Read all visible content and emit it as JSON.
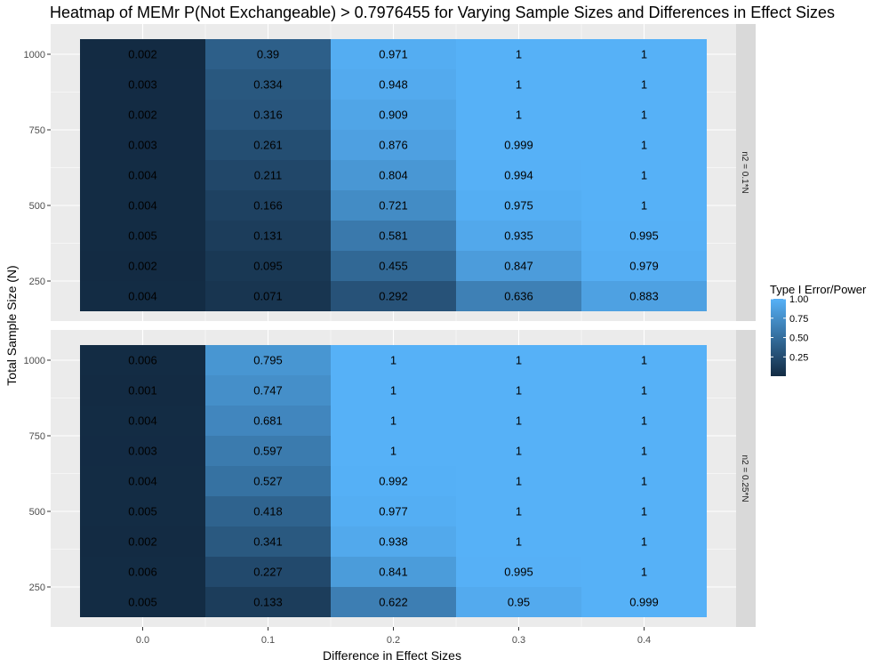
{
  "chart_data": {
    "type": "heatmap",
    "title": "Heatmap of MEMr P(Not Exchangeable) > 0.7976455 for Varying Sample Sizes and Differences in Effect Sizes",
    "xlabel": "Difference in Effect Sizes",
    "ylabel": "Total Sample Size (N)",
    "x": [
      0.0,
      0.1,
      0.2,
      0.3,
      0.4
    ],
    "x_tick_labels": [
      "0.0",
      "0.1",
      "0.2",
      "0.3",
      "0.4"
    ],
    "y": [
      200,
      300,
      400,
      500,
      600,
      700,
      800,
      900,
      1000
    ],
    "y_ticks": [
      250,
      500,
      750,
      1000
    ],
    "y_tick_labels": [
      "250",
      "500",
      "750",
      "1000"
    ],
    "legend": {
      "title": "Type I Error/Power",
      "placement": "right",
      "breaks": [
        0.25,
        0.5,
        0.75,
        1.0
      ],
      "break_labels": [
        "0.25",
        "0.50",
        "0.75",
        "1.00"
      ],
      "low_color": "#132b43",
      "high_color": "#56b1f7"
    },
    "grid": true,
    "colors": {
      "panel_bg": "#ebebeb",
      "grid": "#ffffff",
      "strip_bg": "#d9d9d9",
      "low": "#132b43",
      "high": "#56b1f7"
    },
    "panels": [
      {
        "label": "n2 = 0.1*N",
        "rows": [
          {
            "n": 1000,
            "labels": [
              "0.002",
              "0.39",
              "0.971",
              "1",
              "1"
            ]
          },
          {
            "n": 900,
            "labels": [
              "0.003",
              "0.334",
              "0.948",
              "1",
              "1"
            ]
          },
          {
            "n": 800,
            "labels": [
              "0.002",
              "0.316",
              "0.909",
              "1",
              "1"
            ]
          },
          {
            "n": 700,
            "labels": [
              "0.003",
              "0.261",
              "0.876",
              "0.999",
              "1"
            ]
          },
          {
            "n": 600,
            "labels": [
              "0.004",
              "0.211",
              "0.804",
              "0.994",
              "1"
            ]
          },
          {
            "n": 500,
            "labels": [
              "0.004",
              "0.166",
              "0.721",
              "0.975",
              "1"
            ]
          },
          {
            "n": 400,
            "labels": [
              "0.005",
              "0.131",
              "0.581",
              "0.935",
              "0.995"
            ]
          },
          {
            "n": 300,
            "labels": [
              "0.002",
              "0.095",
              "0.455",
              "0.847",
              "0.979"
            ]
          },
          {
            "n": 200,
            "labels": [
              "0.004",
              "0.071",
              "0.292",
              "0.636",
              "0.883"
            ]
          }
        ]
      },
      {
        "label": "n2 = 0.25*N",
        "rows": [
          {
            "n": 1000,
            "labels": [
              "0.006",
              "0.795",
              "1",
              "1",
              "1"
            ]
          },
          {
            "n": 900,
            "labels": [
              "0.001",
              "0.747",
              "1",
              "1",
              "1"
            ]
          },
          {
            "n": 800,
            "labels": [
              "0.004",
              "0.681",
              "1",
              "1",
              "1"
            ]
          },
          {
            "n": 700,
            "labels": [
              "0.003",
              "0.597",
              "1",
              "1",
              "1"
            ]
          },
          {
            "n": 600,
            "labels": [
              "0.004",
              "0.527",
              "0.992",
              "1",
              "1"
            ]
          },
          {
            "n": 500,
            "labels": [
              "0.005",
              "0.418",
              "0.977",
              "1",
              "1"
            ]
          },
          {
            "n": 400,
            "labels": [
              "0.002",
              "0.341",
              "0.938",
              "1",
              "1"
            ]
          },
          {
            "n": 300,
            "labels": [
              "0.006",
              "0.227",
              "0.841",
              "0.995",
              "1"
            ]
          },
          {
            "n": 200,
            "labels": [
              "0.005",
              "0.133",
              "0.622",
              "0.95",
              "0.999"
            ]
          }
        ]
      }
    ]
  }
}
